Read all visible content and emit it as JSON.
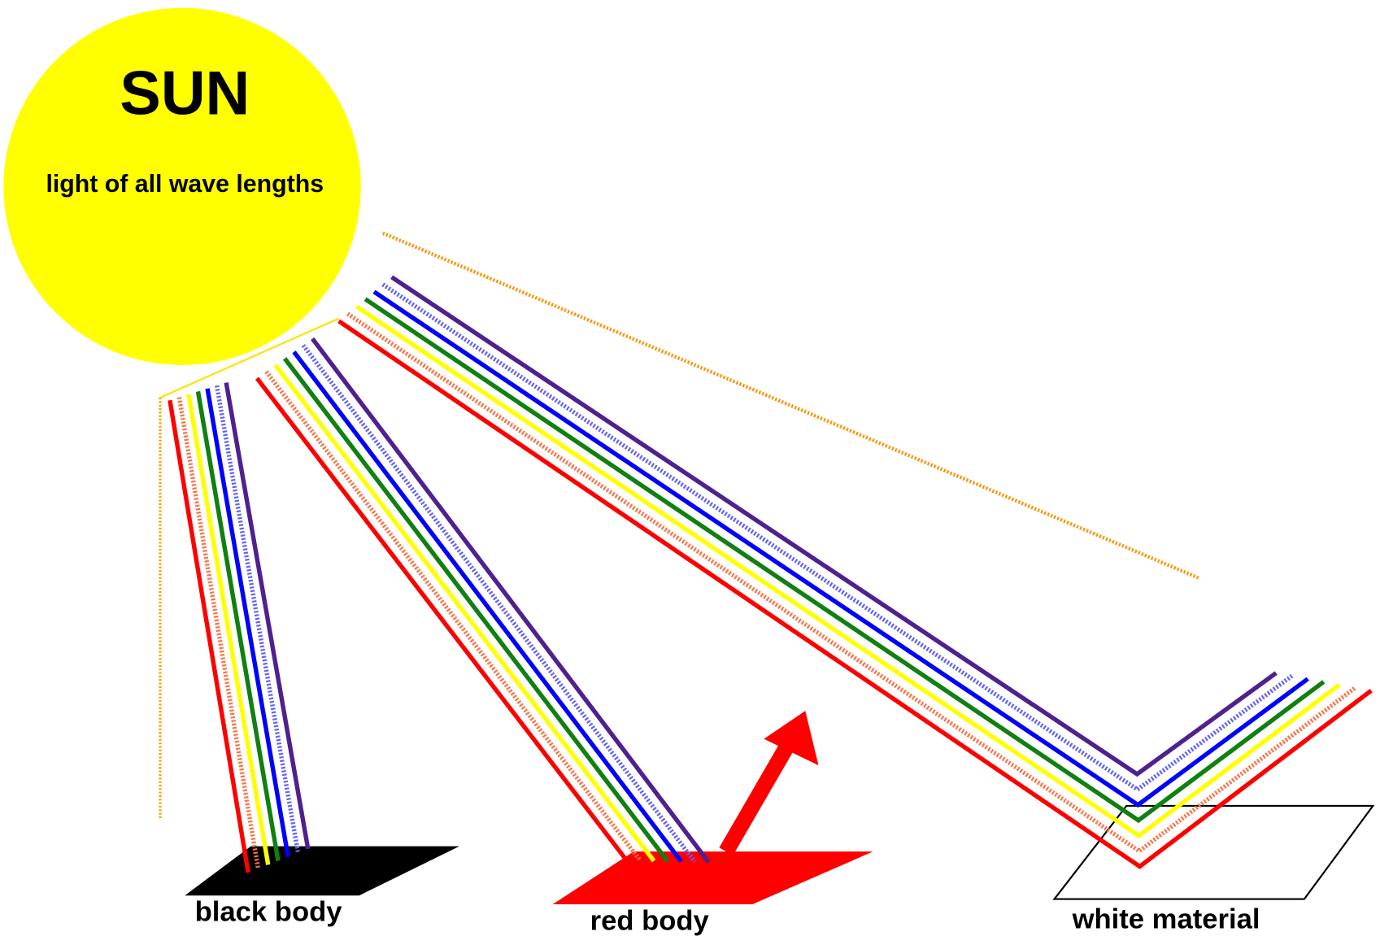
{
  "sun": {
    "title": "SUN",
    "subtitle": "light of all wave lengths"
  },
  "labels": {
    "black": "black body",
    "red": "red body",
    "white": "white material"
  }
}
